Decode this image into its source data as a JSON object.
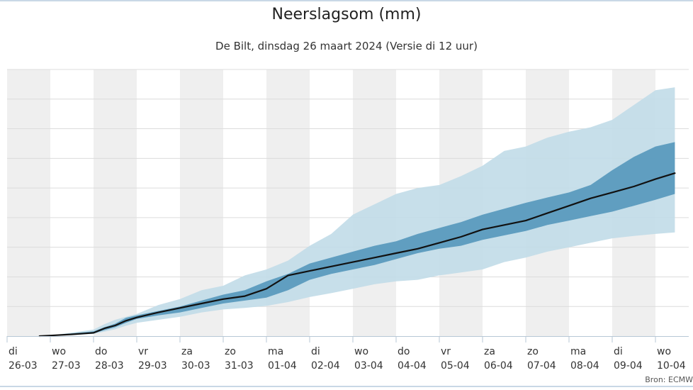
{
  "chart_data": {
    "type": "area",
    "title": "Neerslagsom (mm)",
    "subtitle": "De Bilt, dinsdag 26 maart 2024 (Versie di 12 uur)",
    "credit": "Bron: ECMW",
    "x_unit": "day",
    "categories": [
      {
        "day": "di",
        "date": "26-03"
      },
      {
        "day": "wo",
        "date": "27-03"
      },
      {
        "day": "do",
        "date": "28-03"
      },
      {
        "day": "vr",
        "date": "29-03"
      },
      {
        "day": "za",
        "date": "30-03"
      },
      {
        "day": "zo",
        "date": "31-03"
      },
      {
        "day": "ma",
        "date": "01-04"
      },
      {
        "day": "di",
        "date": "02-04"
      },
      {
        "day": "wo",
        "date": "03-04"
      },
      {
        "day": "do",
        "date": "04-04"
      },
      {
        "day": "vr",
        "date": "05-04"
      },
      {
        "day": "za",
        "date": "06-04"
      },
      {
        "day": "zo",
        "date": "07-04"
      },
      {
        "day": "ma",
        "date": "08-04"
      },
      {
        "day": "di",
        "date": "09-04"
      },
      {
        "day": "wo",
        "date": "10-04"
      }
    ],
    "ylim": [
      0,
      90
    ],
    "ytick_step": 10,
    "y_tick_labels_visible": false,
    "grid": true,
    "alternating_day_shading": true,
    "x": [
      0.75,
      1.0,
      1.5,
      2.0,
      2.25,
      2.5,
      2.75,
      3.0,
      3.5,
      4.0,
      4.5,
      5.0,
      5.5,
      6.0,
      6.5,
      7.0,
      7.5,
      8.0,
      8.5,
      9.0,
      9.5,
      10.0,
      10.5,
      11.0,
      11.5,
      12.0,
      12.5,
      13.0,
      13.5,
      14.0,
      14.5,
      15.0,
      15.45
    ],
    "series": [
      {
        "color": "#c1dbe8",
        "upper": [
          0,
          0.2,
          1.2,
          2.2,
          4.0,
          5.5,
          6.5,
          7.5,
          10.5,
          12.5,
          15.5,
          17.0,
          20.5,
          22.5,
          25.5,
          30.5,
          34.5,
          41.0,
          44.5,
          48.0,
          50.0,
          51.0,
          54.0,
          57.5,
          62.5,
          64.0,
          67.0,
          69.0,
          70.5,
          73.0,
          78.0,
          83.0,
          84.0
        ],
        "lower": [
          0,
          0,
          0.3,
          0.8,
          1.5,
          2.3,
          3.5,
          4.5,
          5.5,
          6.5,
          8.0,
          9.0,
          9.5,
          10.2,
          11.5,
          13.2,
          14.5,
          16.0,
          17.5,
          18.5,
          19.0,
          20.5,
          21.5,
          22.5,
          25.0,
          26.5,
          28.5,
          30.0,
          31.5,
          33.0,
          33.8,
          34.5,
          35.0
        ]
      },
      {
        "color": "#4d93b9",
        "upper": [
          0,
          0.2,
          0.9,
          1.6,
          3.0,
          4.2,
          6.2,
          7.0,
          8.5,
          10.0,
          12.0,
          14.0,
          15.5,
          18.5,
          21.0,
          24.5,
          26.5,
          28.5,
          30.5,
          32.0,
          34.5,
          36.5,
          38.5,
          41.0,
          43.0,
          45.0,
          46.8,
          48.5,
          51.0,
          56.0,
          60.5,
          64.0,
          65.5
        ],
        "lower": [
          0,
          0,
          0.4,
          0.9,
          2.0,
          3.0,
          4.5,
          5.8,
          7.0,
          8.0,
          9.5,
          11.0,
          12.0,
          13.0,
          15.5,
          19.0,
          21.0,
          22.5,
          24.0,
          26.0,
          28.0,
          29.5,
          30.5,
          32.5,
          34.0,
          35.5,
          37.5,
          39.0,
          40.5,
          42.0,
          44.0,
          46.0,
          48.0
        ]
      }
    ],
    "median": [
      0,
      0.2,
      0.6,
      1.1,
      2.6,
      3.6,
      5.2,
      6.3,
      8.0,
      9.5,
      11.0,
      12.5,
      13.5,
      16.0,
      20.5,
      22.0,
      23.5,
      25.0,
      26.5,
      28.0,
      29.5,
      31.5,
      33.5,
      36.0,
      37.5,
      39.0,
      41.5,
      44.0,
      46.5,
      48.5,
      50.5,
      53.0,
      55.0
    ],
    "median_color": "#111111"
  }
}
